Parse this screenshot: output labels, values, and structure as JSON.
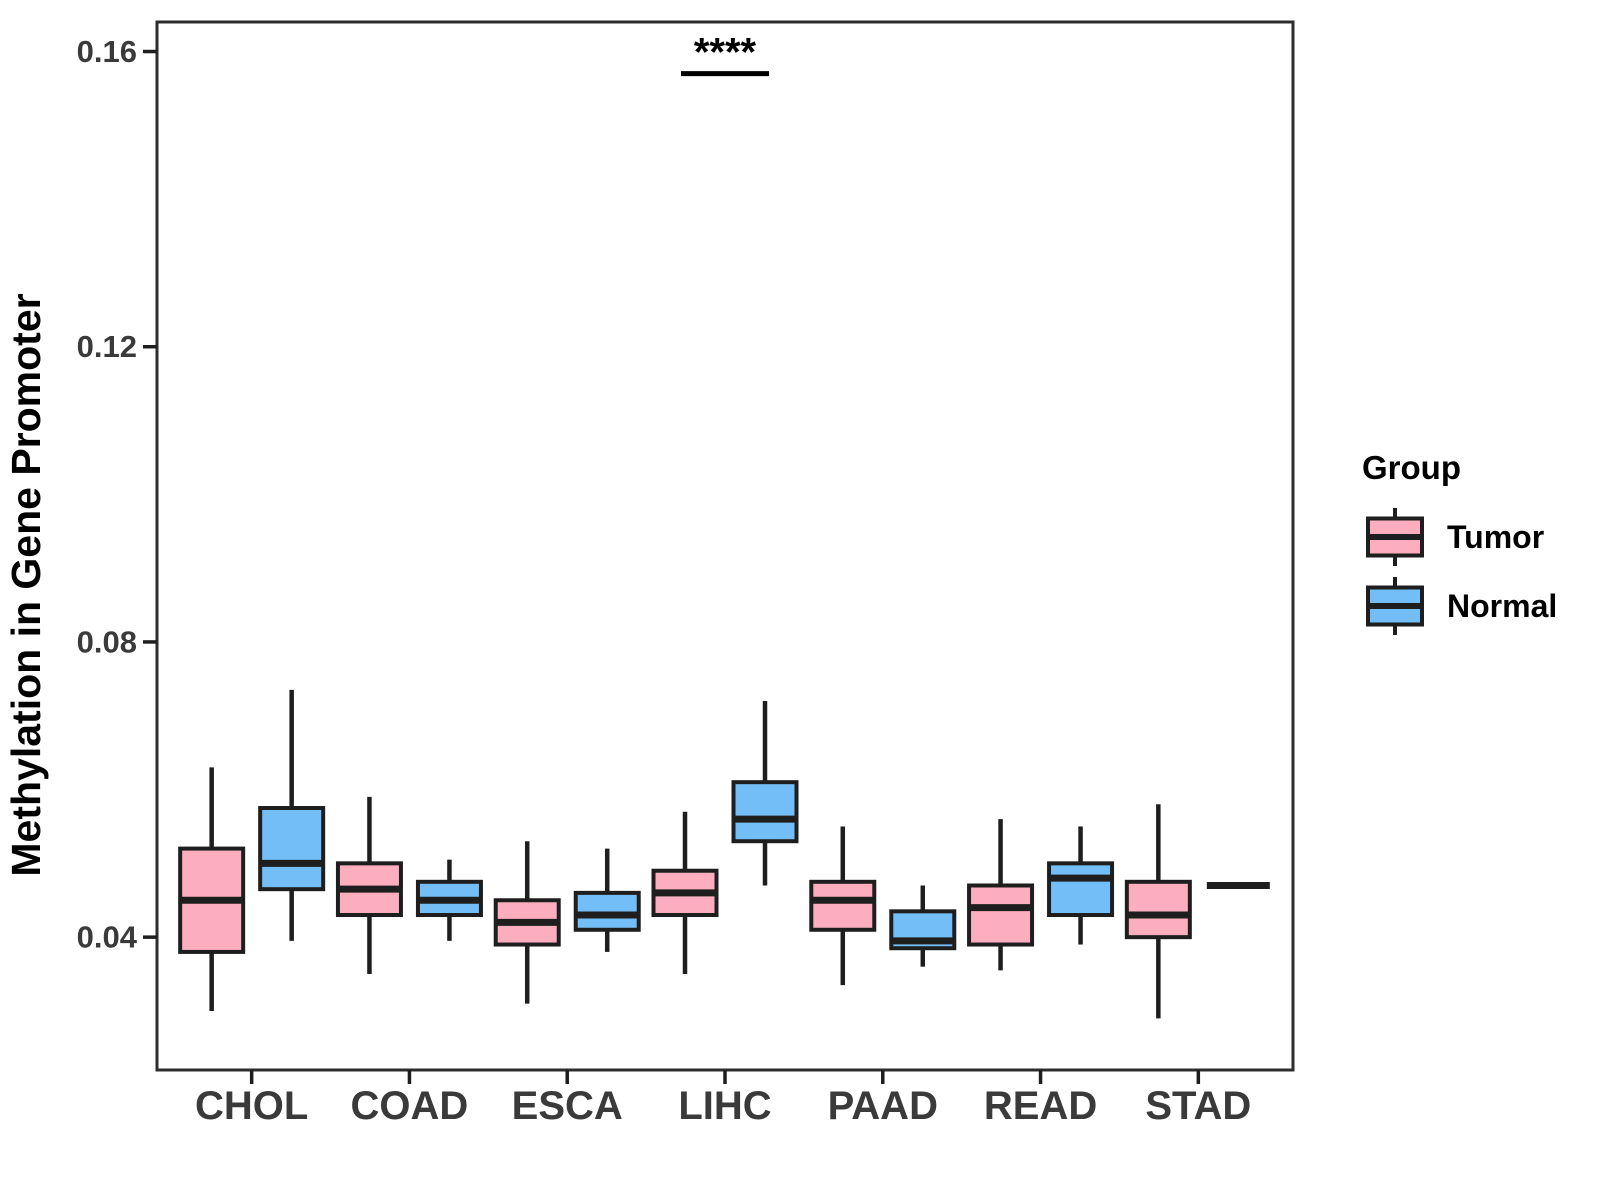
{
  "figure": {
    "background": "#ffffff"
  },
  "chart_data": {
    "type": "box",
    "title": "",
    "xlabel": "",
    "ylabel": "Methylation in Gene Promoter",
    "ylim": [
      0.022,
      0.164
    ],
    "grid": false,
    "yticks": [
      {
        "value": 0.04,
        "label": "0.04"
      },
      {
        "value": 0.08,
        "label": "0.08"
      },
      {
        "value": 0.12,
        "label": "0.12"
      },
      {
        "value": 0.16,
        "label": "0.16"
      }
    ],
    "categories": [
      "CHOL",
      "COAD",
      "ESCA",
      "LIHC",
      "PAAD",
      "READ",
      "STAD"
    ],
    "legend": {
      "title": "Group",
      "position": "right"
    },
    "groups": [
      {
        "name": "Tumor",
        "fill": "#FCAEBE"
      },
      {
        "name": "Normal",
        "fill": "#73BEF6"
      }
    ],
    "series": [
      {
        "name": "Tumor",
        "boxes": [
          {
            "category": "CHOL",
            "whisker_low": 0.03,
            "q1": 0.038,
            "median": 0.045,
            "q3": 0.052,
            "whisker_high": 0.063
          },
          {
            "category": "COAD",
            "whisker_low": 0.035,
            "q1": 0.043,
            "median": 0.0465,
            "q3": 0.05,
            "whisker_high": 0.059
          },
          {
            "category": "ESCA",
            "whisker_low": 0.031,
            "q1": 0.039,
            "median": 0.042,
            "q3": 0.045,
            "whisker_high": 0.053
          },
          {
            "category": "LIHC",
            "whisker_low": 0.035,
            "q1": 0.043,
            "median": 0.046,
            "q3": 0.049,
            "whisker_high": 0.057
          },
          {
            "category": "PAAD",
            "whisker_low": 0.0335,
            "q1": 0.041,
            "median": 0.045,
            "q3": 0.0475,
            "whisker_high": 0.055
          },
          {
            "category": "READ",
            "whisker_low": 0.0355,
            "q1": 0.039,
            "median": 0.044,
            "q3": 0.047,
            "whisker_high": 0.056
          },
          {
            "category": "STAD",
            "whisker_low": 0.029,
            "q1": 0.04,
            "median": 0.043,
            "q3": 0.0475,
            "whisker_high": 0.058
          }
        ]
      },
      {
        "name": "Normal",
        "boxes": [
          {
            "category": "CHOL",
            "whisker_low": 0.0395,
            "q1": 0.0465,
            "median": 0.05,
            "q3": 0.0575,
            "whisker_high": 0.0735
          },
          {
            "category": "COAD",
            "whisker_low": 0.0395,
            "q1": 0.043,
            "median": 0.045,
            "q3": 0.0475,
            "whisker_high": 0.0505
          },
          {
            "category": "ESCA",
            "whisker_low": 0.038,
            "q1": 0.041,
            "median": 0.043,
            "q3": 0.046,
            "whisker_high": 0.052
          },
          {
            "category": "LIHC",
            "whisker_low": 0.047,
            "q1": 0.053,
            "median": 0.056,
            "q3": 0.061,
            "whisker_high": 0.072
          },
          {
            "category": "PAAD",
            "whisker_low": 0.036,
            "q1": 0.0385,
            "median": 0.0395,
            "q3": 0.0435,
            "whisker_high": 0.047
          },
          {
            "category": "READ",
            "whisker_low": 0.039,
            "q1": 0.043,
            "median": 0.048,
            "q3": 0.05,
            "whisker_high": 0.055
          },
          {
            "category": "STAD",
            "whisker_low": 0.047,
            "q1": 0.047,
            "median": 0.047,
            "q3": 0.047,
            "whisker_high": 0.047
          }
        ]
      }
    ],
    "annotation": {
      "label": "****",
      "category": "LIHC",
      "spans_groups": [
        "Tumor",
        "Normal"
      ],
      "y": 0.157
    },
    "colors": {
      "box_stroke": "#1e1e1e",
      "panel_border": "#2d2d2d",
      "axis_text": "#3a3a3a",
      "annotation": "#000000"
    }
  }
}
